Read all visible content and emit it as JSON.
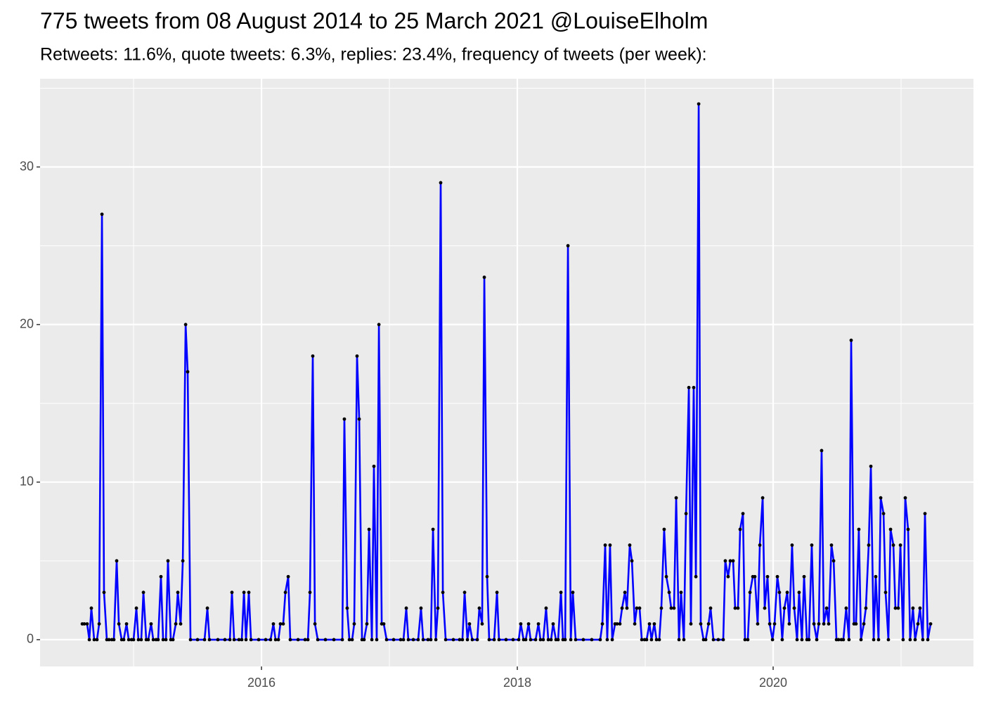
{
  "chart_data": {
    "type": "line",
    "title": "775 tweets from 08 August 2014 to 25 March 2021 @LouiseElholm",
    "subtitle": "Retweets: 11.6%, quote tweets: 6.3%, replies: 23.4%, frequency of tweets (per week):",
    "x": [
      2014.599,
      2014.615,
      2014.637,
      2014.654,
      2014.67,
      2014.692,
      2014.714,
      2014.731,
      2014.753,
      2014.769,
      2014.791,
      2014.808,
      2014.83,
      2014.846,
      2014.868,
      2014.885,
      2014.907,
      2014.923,
      2014.945,
      2014.962,
      2014.984,
      2015.0,
      2015.022,
      2015.038,
      2015.06,
      2015.077,
      2015.099,
      2015.115,
      2015.137,
      2015.154,
      2015.176,
      2015.192,
      2015.214,
      2015.231,
      2015.253,
      2015.269,
      2015.291,
      2015.308,
      2015.33,
      2015.346,
      2015.368,
      2015.385,
      2015.407,
      2015.423,
      2015.445,
      2015.5,
      2015.555,
      2015.577,
      2015.593,
      2015.659,
      2015.714,
      2015.753,
      2015.769,
      2015.786,
      2015.824,
      2015.846,
      2015.863,
      2015.879,
      2015.901,
      2015.918,
      2015.978,
      2016.033,
      2016.071,
      2016.093,
      2016.11,
      2016.132,
      2016.148,
      2016.17,
      2016.187,
      2016.209,
      2016.225,
      2016.286,
      2016.341,
      2016.363,
      2016.379,
      2016.401,
      2016.418,
      2016.44,
      2016.5,
      2016.566,
      2016.632,
      2016.648,
      2016.67,
      2016.687,
      2016.709,
      2016.725,
      2016.747,
      2016.764,
      2016.786,
      2016.802,
      2016.824,
      2016.841,
      2016.863,
      2016.879,
      2016.901,
      2016.918,
      2016.94,
      2016.956,
      2016.978,
      2017.033,
      2017.088,
      2017.11,
      2017.132,
      2017.148,
      2017.187,
      2017.225,
      2017.247,
      2017.264,
      2017.302,
      2017.324,
      2017.341,
      2017.363,
      2017.379,
      2017.401,
      2017.418,
      2017.44,
      2017.5,
      2017.549,
      2017.571,
      2017.588,
      2017.61,
      2017.626,
      2017.648,
      2017.687,
      2017.703,
      2017.725,
      2017.742,
      2017.764,
      2017.78,
      2017.819,
      2017.841,
      2017.857,
      2017.912,
      2017.967,
      2018.011,
      2018.027,
      2018.049,
      2018.066,
      2018.088,
      2018.104,
      2018.143,
      2018.165,
      2018.181,
      2018.203,
      2018.225,
      2018.242,
      2018.264,
      2018.28,
      2018.302,
      2018.319,
      2018.341,
      2018.357,
      2018.374,
      2018.396,
      2018.418,
      2018.434,
      2018.456,
      2018.516,
      2018.582,
      2018.648,
      2018.665,
      2018.687,
      2018.703,
      2018.725,
      2018.742,
      2018.764,
      2018.78,
      2018.802,
      2018.819,
      2018.841,
      2018.857,
      2018.879,
      2018.896,
      2018.918,
      2018.934,
      2018.956,
      2018.973,
      2018.995,
      2019.011,
      2019.033,
      2019.049,
      2019.071,
      2019.088,
      2019.11,
      2019.126,
      2019.148,
      2019.165,
      2019.187,
      2019.203,
      2019.225,
      2019.242,
      2019.264,
      2019.28,
      2019.302,
      2019.319,
      2019.341,
      2019.357,
      2019.379,
      2019.396,
      2019.418,
      2019.434,
      2019.456,
      2019.473,
      2019.495,
      2019.511,
      2019.533,
      2019.571,
      2019.61,
      2019.626,
      2019.648,
      2019.665,
      2019.687,
      2019.703,
      2019.725,
      2019.742,
      2019.764,
      2019.78,
      2019.802,
      2019.819,
      2019.841,
      2019.857,
      2019.879,
      2019.896,
      2019.918,
      2019.934,
      2019.956,
      2019.973,
      2019.995,
      2020.011,
      2020.033,
      2020.049,
      2020.071,
      2020.088,
      2020.11,
      2020.126,
      2020.148,
      2020.165,
      2020.187,
      2020.203,
      2020.225,
      2020.242,
      2020.264,
      2020.28,
      2020.302,
      2020.319,
      2020.341,
      2020.357,
      2020.379,
      2020.396,
      2020.418,
      2020.434,
      2020.456,
      2020.473,
      2020.495,
      2020.511,
      2020.533,
      2020.549,
      2020.571,
      2020.593,
      2020.61,
      2020.632,
      2020.648,
      2020.67,
      2020.687,
      2020.709,
      2020.725,
      2020.747,
      2020.764,
      2020.786,
      2020.802,
      2020.824,
      2020.841,
      2020.863,
      2020.879,
      2020.901,
      2020.918,
      2020.94,
      2020.956,
      2020.978,
      2020.995,
      2021.016,
      2021.033,
      2021.055,
      2021.071,
      2021.093,
      2021.11,
      2021.132,
      2021.148,
      2021.17,
      2021.187,
      2021.209,
      2021.231
    ],
    "series": [
      {
        "color": "#0000ff",
        "marker_color": "#000000",
        "values": [
          1,
          1,
          1,
          0,
          2,
          0,
          0,
          1,
          27,
          3,
          0,
          0,
          0,
          0,
          5,
          1,
          0,
          0,
          1,
          0,
          0,
          0,
          2,
          0,
          0,
          3,
          0,
          0,
          1,
          0,
          0,
          0,
          4,
          0,
          0,
          5,
          0,
          0,
          1,
          3,
          1,
          5,
          20,
          17,
          0,
          0,
          0,
          2,
          0,
          0,
          0,
          0,
          3,
          0,
          0,
          0,
          3,
          0,
          3,
          0,
          0,
          0,
          0,
          1,
          0,
          0,
          1,
          1,
          3,
          4,
          0,
          0,
          0,
          0,
          3,
          18,
          1,
          0,
          0,
          0,
          0,
          14,
          2,
          0,
          0,
          1,
          18,
          14,
          0,
          0,
          1,
          7,
          0,
          11,
          0,
          20,
          1,
          1,
          0,
          0,
          0,
          0,
          2,
          0,
          0,
          0,
          2,
          0,
          0,
          0,
          7,
          0,
          2,
          29,
          3,
          0,
          0,
          0,
          0,
          3,
          0,
          1,
          0,
          0,
          2,
          1,
          23,
          4,
          0,
          0,
          3,
          0,
          0,
          0,
          0,
          1,
          0,
          0,
          1,
          0,
          0,
          1,
          0,
          0,
          2,
          0,
          0,
          1,
          0,
          0,
          3,
          0,
          0,
          25,
          0,
          3,
          0,
          0,
          0,
          0,
          1,
          6,
          0,
          6,
          0,
          1,
          1,
          1,
          2,
          3,
          2,
          6,
          5,
          1,
          2,
          2,
          0,
          0,
          0,
          1,
          0,
          1,
          0,
          0,
          2,
          7,
          4,
          3,
          2,
          2,
          9,
          0,
          3,
          0,
          8,
          16,
          1,
          16,
          4,
          34,
          1,
          0,
          0,
          1,
          2,
          0,
          0,
          0,
          5,
          4,
          5,
          5,
          2,
          2,
          7,
          8,
          0,
          0,
          3,
          4,
          4,
          1,
          6,
          9,
          2,
          4,
          1,
          0,
          1,
          4,
          3,
          0,
          2,
          3,
          1,
          6,
          2,
          0,
          3,
          0,
          4,
          0,
          0,
          6,
          1,
          0,
          1,
          12,
          1,
          2,
          1,
          6,
          5,
          0,
          0,
          0,
          0,
          2,
          0,
          19,
          1,
          1,
          7,
          0,
          1,
          2,
          6,
          11,
          0,
          4,
          0,
          9,
          8,
          3,
          0,
          7,
          6,
          2,
          2,
          6,
          0,
          9,
          7,
          0,
          2,
          0,
          1,
          2,
          0,
          8,
          0,
          1
        ]
      }
    ],
    "xlim": [
      2014.269,
      2021.566
    ],
    "ylim": [
      -1.7,
      35.6
    ],
    "xticks": [
      2016,
      2018,
      2020
    ],
    "yticks": [
      0,
      10,
      20,
      30
    ],
    "xticks_minor": [
      2015,
      2017,
      2019,
      2021
    ],
    "yticks_minor": [
      5,
      15,
      25,
      35
    ],
    "grid": true
  }
}
